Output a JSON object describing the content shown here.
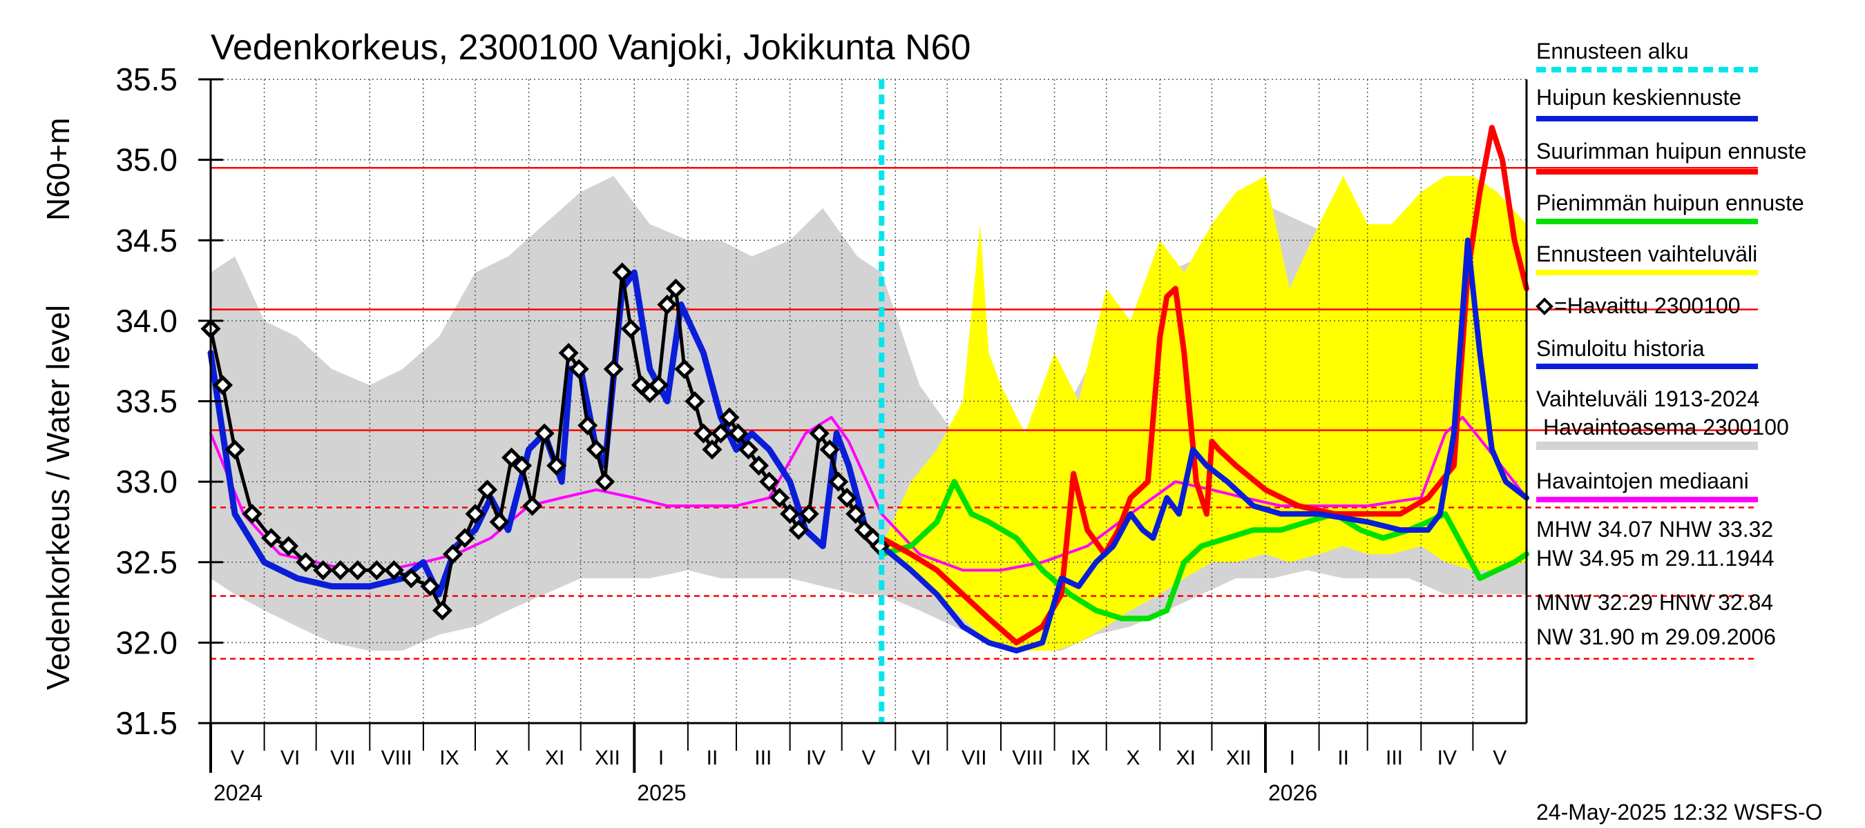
{
  "chart_data": {
    "type": "line",
    "title": "Vedenkorkeus, 2300100 Vanjoki, Jokikunta N60",
    "ylabel": "Vedenkorkeus / Water level",
    "yunit": "N60+m",
    "ylim": [
      31.5,
      35.5
    ],
    "yticks": [
      "31.5",
      "32.0",
      "32.5",
      "33.0",
      "33.5",
      "34.0",
      "34.5",
      "35.0",
      "35.5"
    ],
    "xlim": [
      "2024-05-01",
      "2026-06-01"
    ],
    "forecast_start": "2025-05-24",
    "years": [
      {
        "label": "2024",
        "date": "2024-05-01"
      },
      {
        "label": "2025",
        "date": "2025-01-01"
      },
      {
        "label": "2026",
        "date": "2026-01-01"
      }
    ],
    "months": [
      {
        "label": "V",
        "start": "2024-05-01"
      },
      {
        "label": "VI",
        "start": "2024-06-01"
      },
      {
        "label": "VII",
        "start": "2024-07-01"
      },
      {
        "label": "VIII",
        "start": "2024-08-01"
      },
      {
        "label": "IX",
        "start": "2024-09-01"
      },
      {
        "label": "X",
        "start": "2024-10-01"
      },
      {
        "label": "XI",
        "start": "2024-11-01"
      },
      {
        "label": "XII",
        "start": "2024-12-01"
      },
      {
        "label": "I",
        "start": "2025-01-01"
      },
      {
        "label": "II",
        "start": "2025-02-01"
      },
      {
        "label": "III",
        "start": "2025-03-01"
      },
      {
        "label": "IV",
        "start": "2025-04-01"
      },
      {
        "label": "V",
        "start": "2025-05-01"
      },
      {
        "label": "VI",
        "start": "2025-06-01"
      },
      {
        "label": "VII",
        "start": "2025-07-01"
      },
      {
        "label": "VIII",
        "start": "2025-08-01"
      },
      {
        "label": "IX",
        "start": "2025-09-01"
      },
      {
        "label": "X",
        "start": "2025-10-01"
      },
      {
        "label": "XI",
        "start": "2025-11-01"
      },
      {
        "label": "XII",
        "start": "2025-12-01"
      },
      {
        "label": "I",
        "start": "2026-01-01"
      },
      {
        "label": "II",
        "start": "2026-02-01"
      },
      {
        "label": "III",
        "start": "2026-03-01"
      },
      {
        "label": "IV",
        "start": "2026-04-01"
      },
      {
        "label": "V",
        "start": "2026-05-01"
      }
    ],
    "reference_lines": [
      {
        "name": "HW",
        "value": 34.95,
        "style": "solid"
      },
      {
        "name": "MHW",
        "value": 34.07,
        "style": "solid"
      },
      {
        "name": "NHW",
        "value": 33.32,
        "style": "solid"
      },
      {
        "name": "HNW",
        "value": 32.84,
        "style": "dashed"
      },
      {
        "name": "MNW",
        "value": 32.29,
        "style": "dashed"
      },
      {
        "name": "NW",
        "value": 31.9,
        "style": "dashed"
      }
    ],
    "colors": {
      "forecast_start": "#00e5ee",
      "mean_peak": "#0a1ed8",
      "max_peak": "#ff0000",
      "min_peak": "#00e000",
      "forecast_range": "#ffff00",
      "observed": "#000000",
      "simulated": "#0a1ed8",
      "history_range": "#d3d3d3",
      "median": "#ff00ff",
      "reference": "#ff0000"
    },
    "history_range": {
      "name": "Vaihteluväli 1913-2024 Havaintoasema 2300100",
      "x": [
        "2024-05-01",
        "2024-05-15",
        "2024-06-01",
        "2024-06-20",
        "2024-07-10",
        "2024-08-01",
        "2024-08-20",
        "2024-09-10",
        "2024-10-01",
        "2024-10-20",
        "2024-11-10",
        "2024-12-01",
        "2024-12-20",
        "2025-01-10",
        "2025-02-01",
        "2025-02-20",
        "2025-03-10",
        "2025-04-01",
        "2025-04-20",
        "2025-05-10",
        "2025-05-24",
        "2025-06-15",
        "2025-07-05",
        "2025-07-25",
        "2025-08-15",
        "2025-09-05",
        "2025-09-25",
        "2025-10-15",
        "2025-11-05",
        "2025-11-25",
        "2025-12-15",
        "2026-01-05",
        "2026-01-25",
        "2026-02-15",
        "2026-03-05",
        "2026-03-25",
        "2026-04-15",
        "2026-05-05",
        "2026-06-01"
      ],
      "low": [
        32.4,
        32.3,
        32.2,
        32.1,
        32.0,
        31.95,
        31.95,
        32.05,
        32.1,
        32.2,
        32.3,
        32.4,
        32.4,
        32.4,
        32.45,
        32.4,
        32.4,
        32.4,
        32.35,
        32.3,
        32.3,
        32.2,
        32.1,
        32.0,
        31.95,
        31.95,
        32.05,
        32.1,
        32.2,
        32.3,
        32.4,
        32.4,
        32.45,
        32.4,
        32.4,
        32.4,
        32.3,
        32.3,
        32.3
      ],
      "high": [
        34.3,
        34.4,
        34.0,
        33.9,
        33.7,
        33.6,
        33.7,
        33.9,
        34.3,
        34.4,
        34.6,
        34.8,
        34.9,
        34.6,
        34.5,
        34.5,
        34.4,
        34.5,
        34.7,
        34.4,
        34.3,
        33.6,
        33.3,
        33.2,
        33.2,
        33.4,
        33.8,
        34.0,
        34.3,
        34.4,
        34.6,
        34.7,
        34.6,
        34.5,
        34.5,
        34.4,
        34.6,
        34.8,
        34.3
      ]
    },
    "forecast_range": {
      "name": "Ennusteen vaihteluväli",
      "x": [
        "2025-05-24",
        "2025-06-10",
        "2025-06-25",
        "2025-07-10",
        "2025-07-20",
        "2025-07-25",
        "2025-08-01",
        "2025-08-15",
        "2025-09-01",
        "2025-09-15",
        "2025-10-01",
        "2025-10-15",
        "2025-11-01",
        "2025-11-15",
        "2025-12-01",
        "2025-12-15",
        "2026-01-01",
        "2026-01-15",
        "2026-02-01",
        "2026-02-15",
        "2026-03-01",
        "2026-03-15",
        "2026-04-01",
        "2026-04-15",
        "2026-05-01",
        "2026-05-15",
        "2026-06-01"
      ],
      "low": [
        32.6,
        32.45,
        32.3,
        32.15,
        32.05,
        32.0,
        32.0,
        31.95,
        31.95,
        32.0,
        32.1,
        32.2,
        32.3,
        32.4,
        32.5,
        32.5,
        32.55,
        32.5,
        32.55,
        32.6,
        32.55,
        32.55,
        32.6,
        32.5,
        32.45,
        32.45,
        32.5
      ],
      "high": [
        32.6,
        33.0,
        33.2,
        33.5,
        34.6,
        33.8,
        33.6,
        33.3,
        33.8,
        33.5,
        34.2,
        34.0,
        34.5,
        34.3,
        34.6,
        34.8,
        34.9,
        34.2,
        34.6,
        34.9,
        34.6,
        34.6,
        34.8,
        34.9,
        34.9,
        34.8,
        34.6
      ]
    },
    "series": [
      {
        "name": "Havaintojen mediaani",
        "key": "median",
        "x": [
          "2024-05-01",
          "2024-05-20",
          "2024-06-10",
          "2024-07-01",
          "2024-07-20",
          "2024-08-10",
          "2024-09-01",
          "2024-09-20",
          "2024-10-10",
          "2024-11-01",
          "2024-11-20",
          "2024-12-10",
          "2025-01-01",
          "2025-01-20",
          "2025-02-10",
          "2025-03-01",
          "2025-03-20",
          "2025-04-10",
          "2025-04-25",
          "2025-05-05",
          "2025-05-24",
          "2025-06-15",
          "2025-07-10",
          "2025-08-01",
          "2025-08-25",
          "2025-09-20",
          "2025-10-15",
          "2025-11-10",
          "2025-12-01",
          "2025-12-20",
          "2026-01-10",
          "2026-02-01",
          "2026-03-01",
          "2026-04-01",
          "2026-04-15",
          "2026-04-25",
          "2026-05-10",
          "2026-06-01"
        ],
        "y": [
          33.3,
          32.8,
          32.55,
          32.5,
          32.45,
          32.45,
          32.5,
          32.55,
          32.65,
          32.85,
          32.9,
          32.95,
          32.9,
          32.85,
          32.85,
          32.85,
          32.9,
          33.3,
          33.4,
          33.25,
          32.8,
          32.55,
          32.45,
          32.45,
          32.5,
          32.6,
          32.8,
          33.0,
          32.95,
          32.9,
          32.85,
          32.85,
          32.85,
          32.9,
          33.3,
          33.4,
          33.2,
          32.9
        ]
      },
      {
        "name": "Simuloitu historia",
        "key": "simulated",
        "x": [
          "2024-05-01",
          "2024-05-15",
          "2024-06-01",
          "2024-06-20",
          "2024-07-10",
          "2024-08-01",
          "2024-08-20",
          "2024-09-01",
          "2024-09-10",
          "2024-09-20",
          "2024-10-01",
          "2024-10-10",
          "2024-10-20",
          "2024-11-01",
          "2024-11-10",
          "2024-11-20",
          "2024-11-25",
          "2024-12-01",
          "2024-12-10",
          "2024-12-15",
          "2024-12-25",
          "2025-01-01",
          "2025-01-10",
          "2025-01-20",
          "2025-01-28",
          "2025-02-10",
          "2025-02-20",
          "2025-03-01",
          "2025-03-10",
          "2025-03-20",
          "2025-04-01",
          "2025-04-10",
          "2025-04-20",
          "2025-04-28",
          "2025-05-05",
          "2025-05-15",
          "2025-05-24"
        ],
        "y": [
          33.8,
          32.8,
          32.5,
          32.4,
          32.35,
          32.35,
          32.4,
          32.5,
          32.3,
          32.6,
          32.7,
          32.9,
          32.7,
          33.2,
          33.3,
          33.0,
          33.7,
          33.7,
          33.2,
          33.1,
          34.2,
          34.3,
          33.7,
          33.5,
          34.1,
          33.8,
          33.4,
          33.2,
          33.3,
          33.2,
          33.0,
          32.7,
          32.6,
          33.3,
          33.1,
          32.7,
          32.55
        ]
      },
      {
        "name": "=Havaittu 2300100",
        "key": "observed",
        "x": [
          "2024-05-01",
          "2024-05-08",
          "2024-05-15",
          "2024-05-25",
          "2024-06-05",
          "2024-06-15",
          "2024-06-25",
          "2024-07-05",
          "2024-07-15",
          "2024-07-25",
          "2024-08-05",
          "2024-08-15",
          "2024-08-25",
          "2024-09-05",
          "2024-09-12",
          "2024-09-18",
          "2024-09-25",
          "2024-10-01",
          "2024-10-08",
          "2024-10-15",
          "2024-10-22",
          "2024-10-28",
          "2024-11-03",
          "2024-11-10",
          "2024-11-17",
          "2024-11-24",
          "2024-11-30",
          "2024-12-05",
          "2024-12-10",
          "2024-12-15",
          "2024-12-20",
          "2024-12-25",
          "2024-12-30",
          "2025-01-05",
          "2025-01-10",
          "2025-01-15",
          "2025-01-20",
          "2025-01-25",
          "2025-01-30",
          "2025-02-05",
          "2025-02-10",
          "2025-02-15",
          "2025-02-20",
          "2025-02-25",
          "2025-03-02",
          "2025-03-08",
          "2025-03-14",
          "2025-03-20",
          "2025-03-26",
          "2025-04-01",
          "2025-04-06",
          "2025-04-12",
          "2025-04-18",
          "2025-04-24",
          "2025-04-29",
          "2025-05-04",
          "2025-05-09",
          "2025-05-14",
          "2025-05-19",
          "2025-05-23"
        ],
        "y": [
          33.95,
          33.6,
          33.2,
          32.8,
          32.65,
          32.6,
          32.5,
          32.45,
          32.45,
          32.45,
          32.45,
          32.45,
          32.4,
          32.35,
          32.2,
          32.55,
          32.65,
          32.8,
          32.95,
          32.75,
          33.15,
          33.1,
          32.85,
          33.3,
          33.1,
          33.8,
          33.7,
          33.35,
          33.2,
          33.0,
          33.7,
          34.3,
          33.95,
          33.6,
          33.55,
          33.6,
          34.1,
          34.2,
          33.7,
          33.5,
          33.3,
          33.2,
          33.3,
          33.4,
          33.3,
          33.2,
          33.1,
          33.0,
          32.9,
          32.8,
          32.7,
          32.8,
          33.3,
          33.2,
          33.0,
          32.9,
          32.8,
          32.7,
          32.65,
          32.6
        ]
      },
      {
        "name": "Pienimmän huipun ennuste",
        "key": "min_peak",
        "x": [
          "2025-05-24",
          "2025-06-10",
          "2025-06-25",
          "2025-07-05",
          "2025-07-15",
          "2025-07-25",
          "2025-08-10",
          "2025-08-25",
          "2025-09-10",
          "2025-09-25",
          "2025-10-10",
          "2025-10-25",
          "2025-11-05",
          "2025-11-15",
          "2025-11-25",
          "2025-12-10",
          "2025-12-25",
          "2026-01-10",
          "2026-01-25",
          "2026-02-10",
          "2026-02-25",
          "2026-03-10",
          "2026-03-25",
          "2026-04-05",
          "2026-04-15",
          "2026-04-25",
          "2026-05-05",
          "2026-05-15",
          "2026-05-25",
          "2026-06-01"
        ],
        "y": [
          32.55,
          32.6,
          32.75,
          33.0,
          32.8,
          32.75,
          32.65,
          32.45,
          32.3,
          32.2,
          32.15,
          32.15,
          32.2,
          32.5,
          32.6,
          32.65,
          32.7,
          32.7,
          32.75,
          32.8,
          32.7,
          32.65,
          32.7,
          32.75,
          32.8,
          32.6,
          32.4,
          32.45,
          32.5,
          32.55
        ]
      },
      {
        "name": "Suurimman huipun ennuste",
        "key": "max_peak",
        "x": [
          "2025-05-24",
          "2025-06-10",
          "2025-06-25",
          "2025-07-10",
          "2025-07-25",
          "2025-08-10",
          "2025-08-25",
          "2025-09-05",
          "2025-09-12",
          "2025-09-20",
          "2025-09-30",
          "2025-10-08",
          "2025-10-15",
          "2025-10-25",
          "2025-11-01",
          "2025-11-05",
          "2025-11-10",
          "2025-11-15",
          "2025-11-22",
          "2025-11-28",
          "2025-12-01",
          "2025-12-05",
          "2025-12-15",
          "2026-01-01",
          "2026-01-20",
          "2026-02-10",
          "2026-03-01",
          "2026-03-20",
          "2026-04-05",
          "2026-04-20",
          "2026-04-28",
          "2026-05-05",
          "2026-05-12",
          "2026-05-18",
          "2026-05-25",
          "2026-06-01"
        ],
        "y": [
          32.65,
          32.55,
          32.45,
          32.3,
          32.15,
          32.0,
          32.1,
          32.3,
          33.05,
          32.7,
          32.55,
          32.7,
          32.9,
          33.0,
          33.9,
          34.15,
          34.2,
          33.8,
          33.0,
          32.8,
          33.25,
          33.2,
          33.1,
          32.95,
          32.85,
          32.8,
          32.8,
          32.8,
          32.9,
          33.1,
          34.3,
          34.8,
          35.2,
          35.0,
          34.5,
          34.2
        ]
      },
      {
        "name": "Huipun keskiennuste",
        "key": "mean_peak",
        "x": [
          "2025-05-24",
          "2025-06-10",
          "2025-06-25",
          "2025-07-10",
          "2025-07-25",
          "2025-08-10",
          "2025-08-25",
          "2025-09-05",
          "2025-09-15",
          "2025-09-25",
          "2025-10-05",
          "2025-10-15",
          "2025-10-22",
          "2025-10-28",
          "2025-11-05",
          "2025-11-12",
          "2025-11-20",
          "2025-11-28",
          "2025-12-10",
          "2025-12-25",
          "2026-01-10",
          "2026-02-01",
          "2026-03-01",
          "2026-03-20",
          "2026-04-05",
          "2026-04-12",
          "2026-04-20",
          "2026-04-28",
          "2026-05-05",
          "2026-05-12",
          "2026-05-20",
          "2026-06-01"
        ],
        "y": [
          32.6,
          32.45,
          32.3,
          32.1,
          32.0,
          31.95,
          32.0,
          32.4,
          32.35,
          32.5,
          32.6,
          32.8,
          32.7,
          32.65,
          32.9,
          32.8,
          33.2,
          33.1,
          33.0,
          32.85,
          32.8,
          32.8,
          32.75,
          32.7,
          32.7,
          32.8,
          33.3,
          34.5,
          33.8,
          33.2,
          33.0,
          32.9
        ]
      }
    ],
    "legend": [
      {
        "label": "Ennusteen alku",
        "key": "forecast_start",
        "swatch": "dashed"
      },
      {
        "label": "Huipun keskiennuste",
        "key": "mean_peak",
        "swatch": "line"
      },
      {
        "label": "Suurimman huipun ennuste",
        "key": "max_peak",
        "swatch": "line"
      },
      {
        "label": "Pienimmän huipun ennuste",
        "key": "min_peak",
        "swatch": "line"
      },
      {
        "label": "Ennusteen vaihteluväli",
        "key": "forecast_range",
        "swatch": "line"
      },
      {
        "label": "=Havaittu 2300100",
        "key": "observed",
        "swatch": "diamond"
      },
      {
        "label": "Simuloitu historia",
        "key": "simulated",
        "swatch": "line"
      },
      {
        "label": "Vaihteluväli 1913-2024",
        "key": "history_range",
        "swatch": "none"
      },
      {
        "label": "Havaintoasema 2300100",
        "key": "history_range",
        "swatch": "bar"
      },
      {
        "label": "Havaintojen mediaani",
        "key": "median",
        "swatch": "line"
      }
    ],
    "stats_text": [
      {
        "text": "MHW  34.07 NHW  33.32"
      },
      {
        "text": "HW  34.95 m 29.11.1944"
      },
      {
        "text": "MNW  32.29 HNW  32.84"
      },
      {
        "text": "NW  31.90 m 29.09.2006"
      }
    ],
    "footer": "24-May-2025 12:32 WSFS-O"
  }
}
